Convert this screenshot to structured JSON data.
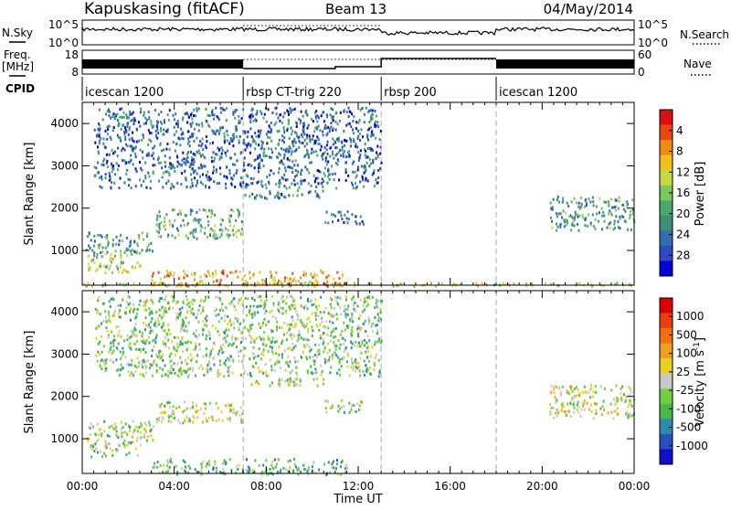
{
  "header": {
    "station": "Kapuskasing (fitACF)",
    "beam": "Beam 13",
    "date": "04/May/2014"
  },
  "left_labels": {
    "nsky": "N.Sky",
    "freq_line1": "Freq.",
    "freq_line2": "[MHz]",
    "cpid": "CPID"
  },
  "right_labels": {
    "nsearch": "N.Search",
    "nave": "Nave"
  },
  "noise_panel": {
    "left_ticks": [
      "10^5",
      "10^0"
    ],
    "right_ticks": [
      "10^5",
      "10^0"
    ]
  },
  "freq_panel": {
    "left_ticks": [
      "18",
      "8"
    ],
    "right_ticks": [
      "60",
      "0"
    ]
  },
  "cpid_segments": [
    {
      "label": "icescan 1200",
      "start_hour": 0,
      "end_hour": 7
    },
    {
      "label": "rbsp CT-trig 220",
      "start_hour": 7,
      "end_hour": 13
    },
    {
      "label": "rbsp 200",
      "start_hour": 13,
      "end_hour": 18
    },
    {
      "label": "icescan 1200",
      "start_hour": 18,
      "end_hour": 24
    }
  ],
  "chart_data": [
    {
      "type": "heatmap",
      "title": "",
      "xlabel": "",
      "ylabel": "Slant Range [km]",
      "xlim": [
        0,
        24
      ],
      "ylim": [
        180,
        4500
      ],
      "yticks": [
        "1000",
        "2000",
        "3000",
        "4000"
      ],
      "colorbar": {
        "label": "Power [dB]",
        "ticks": [
          "4",
          "8",
          "12",
          "16",
          "20",
          "24",
          "28"
        ],
        "colors": [
          "#0000d8",
          "#2a4cc0",
          "#2f6fb0",
          "#3f8f78",
          "#4aa868",
          "#7cc85c",
          "#c8d840",
          "#f0c020",
          "#f08a10",
          "#e84810",
          "#d81010"
        ]
      },
      "scatter_regions": [
        {
          "x": [
            0.1,
            3.2
          ],
          "y": [
            950,
            1450
          ],
          "level": 0.35
        },
        {
          "x": [
            0.2,
            2.5
          ],
          "y": [
            500,
            950
          ],
          "level": 0.55
        },
        {
          "x": [
            3.2,
            7.0
          ],
          "y": [
            1300,
            2000
          ],
          "level": 0.4
        },
        {
          "x": [
            7.0,
            10.5
          ],
          "y": [
            2250,
            2450
          ],
          "level": 0.25
        },
        {
          "x": [
            10.5,
            12.2
          ],
          "y": [
            1650,
            1950
          ],
          "level": 0.2
        },
        {
          "x": [
            3.0,
            11.5
          ],
          "y": [
            180,
            550
          ],
          "level": 0.75
        },
        {
          "x": [
            20.3,
            24
          ],
          "y": [
            1500,
            2300
          ],
          "level": 0.35
        },
        {
          "x": [
            0,
            24
          ],
          "y": [
            180,
            260
          ],
          "level": 0.6
        },
        {
          "x": [
            0.5,
            13
          ],
          "y": [
            2500,
            4400
          ],
          "level": 0.2
        }
      ]
    },
    {
      "type": "heatmap",
      "title": "",
      "xlabel": "Time UT",
      "ylabel": "Slant Range [km]",
      "xlim": [
        0,
        24
      ],
      "ylim": [
        180,
        4500
      ],
      "yticks": [
        "1000",
        "2000",
        "3000",
        "4000"
      ],
      "xticks": [
        "00:00",
        "04:00",
        "08:00",
        "12:00",
        "16:00",
        "20:00",
        "00:00"
      ],
      "colorbar": {
        "label": "Velocity",
        "label_unit": "[m s",
        "label_sup": "-1",
        "ticks": [
          "1000",
          "500",
          "100",
          "25",
          "-25",
          "-100",
          "-500",
          "-1000"
        ],
        "colors": [
          "#1010c8",
          "#2850c0",
          "#2f8ab0",
          "#48b848",
          "#70d040",
          "#c8c8c8",
          "#e8d020",
          "#f0a020",
          "#f07010",
          "#e84010",
          "#d80000"
        ]
      },
      "scatter_regions": [
        {
          "x": [
            0.1,
            3.2
          ],
          "y": [
            950,
            1450
          ],
          "level": 0.45
        },
        {
          "x": [
            0.2,
            2.5
          ],
          "y": [
            600,
            950
          ],
          "level": 0.4
        },
        {
          "x": [
            3.2,
            7.0
          ],
          "y": [
            1400,
            1900
          ],
          "level": 0.5
        },
        {
          "x": [
            7.0,
            10.5
          ],
          "y": [
            2250,
            2450
          ],
          "level": 0.5
        },
        {
          "x": [
            10.5,
            12.2
          ],
          "y": [
            1650,
            1950
          ],
          "level": 0.45
        },
        {
          "x": [
            3.0,
            11.5
          ],
          "y": [
            180,
            550
          ],
          "level": 0.35
        },
        {
          "x": [
            20.3,
            24
          ],
          "y": [
            1500,
            2300
          ],
          "level": 0.5
        },
        {
          "x": [
            0.5,
            13
          ],
          "y": [
            2500,
            4400
          ],
          "level": 0.4
        }
      ]
    }
  ]
}
